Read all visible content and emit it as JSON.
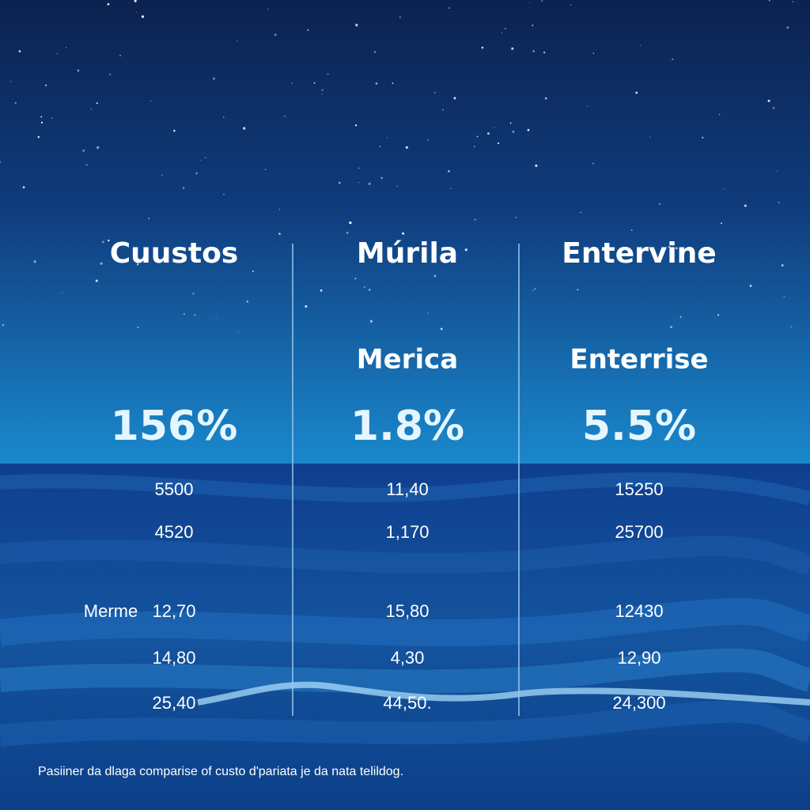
{
  "columns": [
    {
      "title": "Cuustos",
      "headline": "156%",
      "values": [
        "5500",
        "4520",
        "12,70",
        "14,80",
        "25,40"
      ]
    },
    {
      "title": "Múrila",
      "subtitle": "Merica",
      "headline": "1.8%",
      "values": [
        "11,40",
        "1,170",
        "15,80",
        "4,30",
        "44,50."
      ]
    },
    {
      "title": "Entervine",
      "subtitle": "Enterrise",
      "headline": "5.5%",
      "values": [
        "15250",
        "25700",
        "12430",
        "12,90",
        "24,300"
      ]
    }
  ],
  "row_label": "Merme",
  "footnote": "Pasiiner da dlaga comparise of custo d'pariata je da nata telildog."
}
